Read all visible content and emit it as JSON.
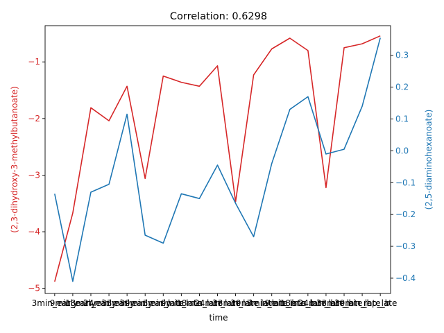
{
  "chart_data": {
    "type": "line",
    "title": "Correlation: 0.6298",
    "xlabel": "time",
    "categories": [
      "3min_early",
      "9min_early",
      "18min_early",
      "24min_early",
      "33min_early",
      "39min_early",
      "3min_late",
      "9min_late",
      "18min_late",
      "24min_late",
      "33min_late",
      "39min_late",
      "3min_late_b",
      "9min_late_b",
      "18min_late_b",
      "24min_late_b",
      "33min_late_b",
      "39min_late_b",
      "rep_late"
    ],
    "series": [
      {
        "name": "(2,3-dihydroxy-3-methylbutanoate)",
        "axis": "left",
        "color": "#d62728",
        "values": [
          -4.88,
          -3.67,
          -1.81,
          -2.04,
          -1.43,
          -3.06,
          -1.25,
          -1.36,
          -1.43,
          -1.07,
          -3.47,
          -1.23,
          -0.77,
          -0.58,
          -0.8,
          -3.22,
          -0.75,
          -0.68,
          -0.54
        ]
      },
      {
        "name": "(2,5-diaminohexanoate)",
        "axis": "right",
        "color": "#1f77b4",
        "values": [
          -0.135,
          -0.41,
          -0.13,
          -0.105,
          0.115,
          -0.265,
          -0.29,
          -0.135,
          -0.15,
          -0.045,
          -0.165,
          -0.27,
          -0.04,
          0.13,
          0.17,
          -0.01,
          0.005,
          0.14,
          0.355
        ]
      }
    ],
    "y_left": {
      "label": "(2,3-dihydroxy-3-methylbutanoate)",
      "ylim": [
        -5.09,
        -0.36
      ],
      "ticks": [
        -5,
        -4,
        -3,
        -2,
        -1
      ],
      "color": "#d62728"
    },
    "y_right": {
      "label": "(2,5-diaminohexanoate)",
      "ylim": [
        -0.448,
        0.393
      ],
      "ticks": [
        -0.4,
        -0.3,
        -0.2,
        -0.1,
        0.0,
        0.1,
        0.2,
        0.3
      ],
      "tick_labels": [
        "−0.4",
        "−0.3",
        "−0.2",
        "−0.1",
        "0.0",
        "0.1",
        "0.2",
        "0.3"
      ],
      "color": "#1f77b4"
    },
    "grid": false,
    "legend": "none"
  }
}
